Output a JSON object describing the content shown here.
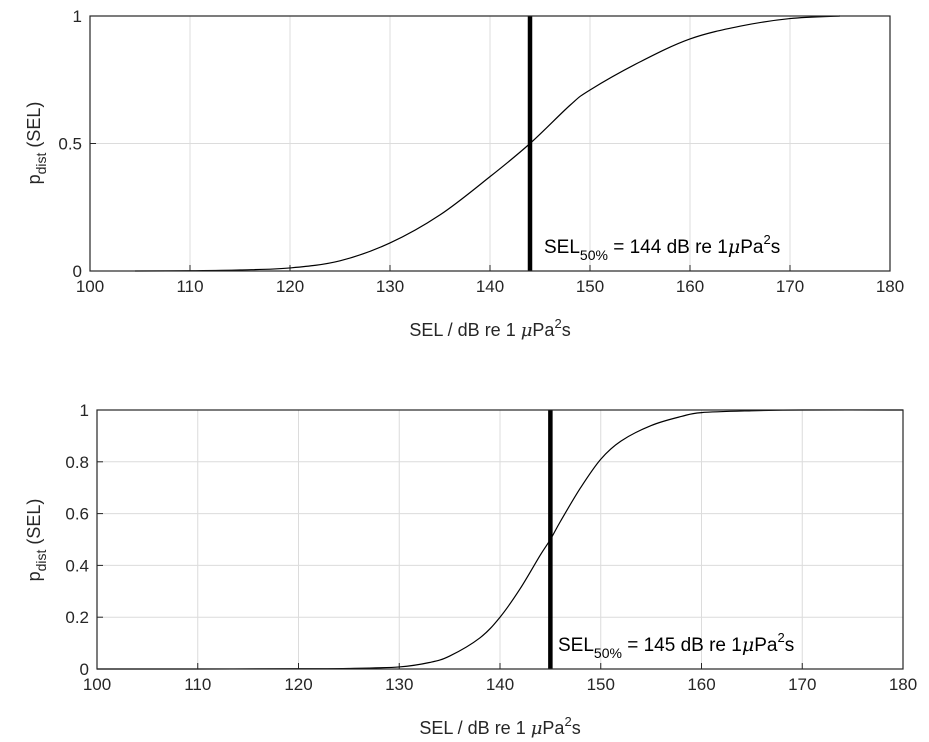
{
  "chart_data": [
    {
      "type": "line",
      "xlabel": {
        "main": "SEL / dB re 1 ",
        "mu": "μ",
        "unit": "Pa",
        "sup": "2",
        "tail": "s"
      },
      "ylabel": {
        "p": "p",
        "sub": "dist",
        "rest": " (SEL)"
      },
      "xlim": [
        100,
        180
      ],
      "ylim": [
        0,
        1
      ],
      "xticks": [
        "100",
        "110",
        "120",
        "130",
        "140",
        "150",
        "160",
        "170",
        "180"
      ],
      "yticks": [
        "0",
        "0.5",
        "1"
      ],
      "grid": true,
      "series": [
        {
          "x": [
            104.5,
            110,
            115,
            120,
            125,
            130,
            135,
            140,
            144,
            148,
            150,
            155,
            160,
            165,
            170,
            175
          ],
          "y": [
            0.0,
            0.001,
            0.004,
            0.012,
            0.04,
            0.11,
            0.22,
            0.37,
            0.5,
            0.65,
            0.71,
            0.82,
            0.91,
            0.96,
            0.99,
            1.0
          ]
        }
      ],
      "marker_x": 144,
      "annotation": {
        "sel": "SEL",
        "sub": "50%",
        "eq": " = 144 dB re 1",
        "mu": "μ",
        "unit": "Pa",
        "sup": "2",
        "tail": "s"
      }
    },
    {
      "type": "line",
      "xlabel": {
        "main": "SEL / dB re 1 ",
        "mu": "μ",
        "unit": "Pa",
        "sup": "2",
        "tail": "s"
      },
      "ylabel": {
        "p": "p",
        "sub": "dist",
        "rest": " (SEL)"
      },
      "xlim": [
        100,
        180
      ],
      "ylim": [
        0,
        1
      ],
      "xticks": [
        "100",
        "110",
        "120",
        "130",
        "140",
        "150",
        "160",
        "170",
        "180"
      ],
      "yticks": [
        "0",
        "0.2",
        "0.4",
        "0.6",
        "0.8",
        "1"
      ],
      "grid": true,
      "series": [
        {
          "x": [
            100,
            110,
            120,
            125,
            130,
            133,
            135,
            138,
            140,
            142,
            144,
            145,
            146,
            148,
            150,
            152,
            155,
            158,
            160,
            165,
            170,
            180
          ],
          "y": [
            0.0,
            0.0,
            0.001,
            0.002,
            0.008,
            0.025,
            0.05,
            0.12,
            0.2,
            0.31,
            0.44,
            0.5,
            0.57,
            0.7,
            0.81,
            0.88,
            0.94,
            0.975,
            0.99,
            0.997,
            1.0,
            1.0
          ]
        }
      ],
      "marker_x": 145,
      "annotation": {
        "sel": "SEL",
        "sub": "50%",
        "eq": " = 145 dB re 1",
        "mu": "μ",
        "unit": "Pa",
        "sup": "2",
        "tail": "s"
      }
    }
  ]
}
